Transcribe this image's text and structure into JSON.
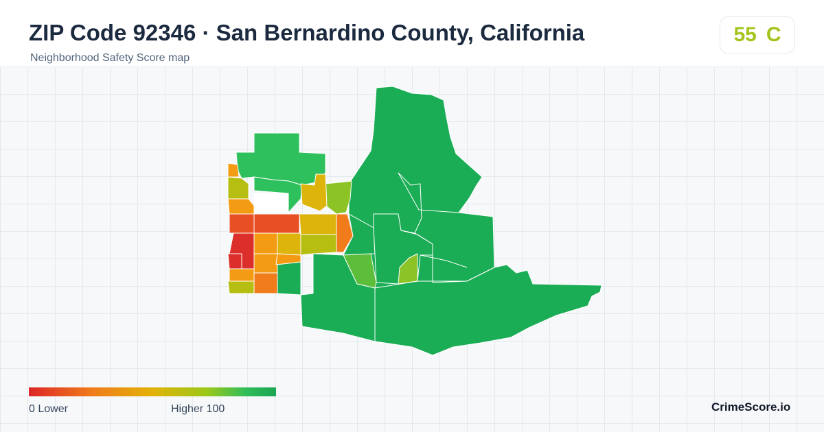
{
  "header": {
    "title": "ZIP Code 92346 · San Bernardino County, California",
    "subtitle": "Neighborhood Safety Score map"
  },
  "score": {
    "value": "55",
    "grade": "C",
    "color": "#a3c41c"
  },
  "legend": {
    "min_label": "0  Lower",
    "max_label": "Higher  100",
    "low_color": "#dc2626",
    "high_color": "#1aa553"
  },
  "brand": "CrimeScore.io",
  "map": {
    "boundary_color": "#ffffff",
    "colors": {
      "green": "#1bad55",
      "green_light": "#2ec05c",
      "lime": "#8cc326",
      "lime_light": "#5cbe3a",
      "yellow_green": "#b6be12",
      "yellow": "#dcb40c",
      "orange": "#f39b12",
      "orange_dark": "#f07c1c",
      "red_orange": "#e84f24",
      "red": "#dc2e2a"
    }
  }
}
